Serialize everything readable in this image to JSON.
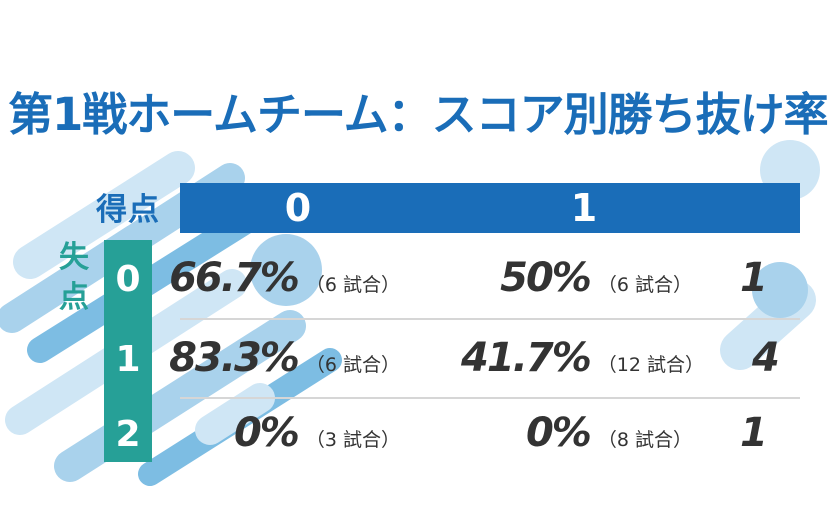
{
  "title": "第1戦ホームチーム：スコア別勝ち抜け率",
  "chart_data": {
    "type": "table",
    "corner_top_label": "得点",
    "corner_left_label": [
      "失",
      "点"
    ],
    "columns": [
      "0",
      "1"
    ],
    "rows": [
      {
        "label": "0",
        "cells": [
          {
            "rate": "66.7%",
            "games": "（6 試合）"
          },
          {
            "rate": "50%",
            "games": "（6 試合）"
          }
        ],
        "partial_right": "1"
      },
      {
        "label": "1",
        "cells": [
          {
            "rate": "83.3%",
            "games": "（6 試合）"
          },
          {
            "rate": "41.7%",
            "games": "（12 試合）"
          }
        ],
        "partial_right": "4"
      },
      {
        "label": "2",
        "cells": [
          {
            "rate": "0%",
            "games": "（3 試合）"
          },
          {
            "rate": "0%",
            "games": "（8 試合）"
          }
        ],
        "partial_right": "1"
      }
    ]
  },
  "colors": {
    "header_blue": "#1a6db8",
    "row_teal": "#26a097",
    "decor_light": "#cfe6f5",
    "decor_mid": "#a9d2ec",
    "decor_dark": "#7dbde3"
  }
}
